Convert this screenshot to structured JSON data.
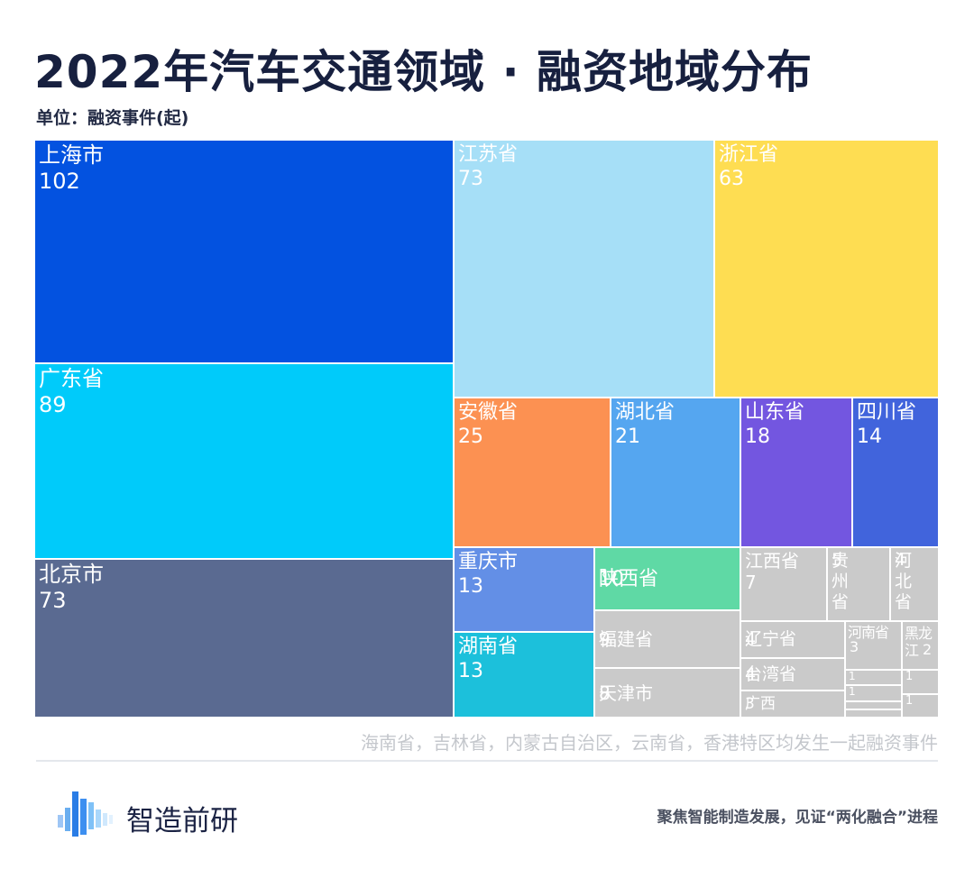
{
  "header": {
    "title": "2022年汽车交通领域 · 融资地域分布",
    "unit": "单位：融资事件(起)"
  },
  "chart_data": {
    "type": "treemap",
    "title": "2022年汽车交通领域 · 融资地域分布",
    "unit": "单位：融资事件(起)",
    "items": [
      {
        "name": "上海市",
        "label": "上海市",
        "value": 102,
        "color": "#0352e0"
      },
      {
        "name": "广东省",
        "label": "广东省",
        "value": 89,
        "color": "#00cbfa"
      },
      {
        "name": "北京市",
        "label": "北京市",
        "value": 73,
        "color": "#5a6a91"
      },
      {
        "name": "江苏省",
        "label": "江苏省",
        "value": 73,
        "color": "#a6dff7"
      },
      {
        "name": "浙江省",
        "label": "浙江省",
        "value": 63,
        "color": "#fedd52"
      },
      {
        "name": "安徽省",
        "label": "安徽省",
        "value": 25,
        "color": "#fc9152"
      },
      {
        "name": "湖北省",
        "label": "湖北省",
        "value": 21,
        "color": "#55a6f0"
      },
      {
        "name": "山东省",
        "label": "山东省",
        "value": 18,
        "color": "#7356e0"
      },
      {
        "name": "四川省",
        "label": "四川省",
        "value": 14,
        "color": "#4164dc"
      },
      {
        "name": "重庆市",
        "label": "重庆市",
        "value": 13,
        "color": "#638fe6"
      },
      {
        "name": "湖南省",
        "label": "湖南省",
        "value": 13,
        "color": "#1cc0db"
      },
      {
        "name": "陕西省",
        "label": "陕西省",
        "value": 10,
        "color": "#5fd9a5"
      },
      {
        "name": "福建省",
        "label": "福建省",
        "value": 9,
        "color": "#cacaca"
      },
      {
        "name": "天津市",
        "label": "天津市",
        "value": 8,
        "color": "#cacaca"
      },
      {
        "name": "江西省",
        "label": "江西省",
        "value": 7,
        "color": "#cacaca"
      },
      {
        "name": "贵州省",
        "label": "贵州省",
        "value": 5,
        "color": "#cacaca"
      },
      {
        "name": "河北省",
        "label": "河北省",
        "value": 4,
        "color": "#cacaca"
      },
      {
        "name": "辽宁省",
        "label": "辽宁省",
        "value": 4,
        "color": "#cacaca"
      },
      {
        "name": "台湾省",
        "label": "台湾省",
        "value": 4,
        "color": "#cacaca"
      },
      {
        "name": "广西",
        "label": "广西",
        "value": 3,
        "color": "#cacaca"
      },
      {
        "name": "河南省",
        "label": "河南省",
        "value": 3,
        "color": "#cacaca"
      },
      {
        "name": "黑龙江",
        "label": "黑龙江",
        "value": 2,
        "color": "#cacaca"
      },
      {
        "name": "未标注1",
        "label": "",
        "value": 1,
        "color": "#cacaca"
      },
      {
        "name": "未标注2",
        "label": "",
        "value": 1,
        "color": "#cacaca"
      },
      {
        "name": "未标注3",
        "label": "",
        "value": 1,
        "color": "#cacaca"
      },
      {
        "name": "未标注4",
        "label": "",
        "value": 1,
        "color": "#cacaca"
      },
      {
        "name": "未标注5",
        "label": "",
        "value": 1,
        "color": "#cacaca"
      },
      {
        "name": "未标注6",
        "label": "",
        "value": 1,
        "color": "#cacaca"
      }
    ]
  },
  "footer": {
    "note": "海南省，吉林省，内蒙古自治区，云南省，香港特区均发生一起融资事件",
    "brand": "智造前研",
    "slogan": "聚焦智能制造发展，见证“两化融合”进程",
    "logo_icon": "bar-logo-icon"
  }
}
